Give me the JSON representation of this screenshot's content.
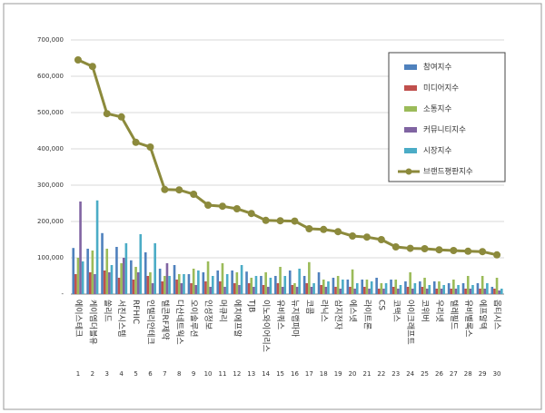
{
  "chart_data": {
    "type": "bar",
    "categories": [
      "에이스테크",
      "케이엠더블유",
      "쏠리드",
      "서진시스템",
      "RFHIC",
      "인텔리안테크",
      "텔콘RF제약",
      "다산네트웍스",
      "오이솔루션",
      "인성정보",
      "머큐리",
      "에치에프알",
      "TJB",
      "이노와이어리스",
      "유비쿼스",
      "뉴지랩파마",
      "코콤",
      "라닉스",
      "삼지전자",
      "에스넷",
      "라이트론",
      "CS",
      "코맥스",
      "아이크래프트",
      "코위버",
      "우리넷",
      "텔레필드",
      "유비벨록스",
      "에프알텍",
      "옵티시스"
    ],
    "category_numbers": [
      1,
      2,
      3,
      4,
      5,
      6,
      7,
      8,
      9,
      10,
      11,
      12,
      13,
      14,
      15,
      16,
      17,
      18,
      19,
      20,
      21,
      22,
      23,
      24,
      25,
      26,
      27,
      28,
      29,
      30
    ],
    "series": [
      {
        "name": "참여지수",
        "color": "#4f81bd",
        "values": [
          127000,
          125000,
          168000,
          130000,
          93000,
          115000,
          70000,
          80000,
          55000,
          60000,
          65000,
          65000,
          62000,
          50000,
          50000,
          65000,
          50000,
          60000,
          45000,
          40000,
          40000,
          45000,
          40000,
          35000,
          35000,
          35000,
          30000,
          30000,
          30000,
          20000
        ]
      },
      {
        "name": "미디어지수",
        "color": "#c0504d",
        "values": [
          55000,
          60000,
          65000,
          45000,
          40000,
          50000,
          35000,
          40000,
          30000,
          35000,
          35000,
          30000,
          30000,
          25000,
          30000,
          25000,
          30000,
          25000,
          20000,
          20000,
          20000,
          15000,
          20000,
          20000,
          20000,
          15000,
          15000,
          15000,
          15000,
          15000
        ]
      },
      {
        "name": "소통지수",
        "color": "#9bbb59",
        "values": [
          100000,
          120000,
          125000,
          85000,
          75000,
          60000,
          50000,
          55000,
          70000,
          90000,
          85000,
          60000,
          45000,
          60000,
          75000,
          30000,
          88000,
          40000,
          50000,
          68000,
          40000,
          30000,
          40000,
          60000,
          45000,
          35000,
          40000,
          50000,
          50000,
          45000
        ]
      },
      {
        "name": "커뮤니티지수",
        "color": "#8064a2",
        "values": [
          255000,
          55000,
          60000,
          100000,
          60000,
          30000,
          85000,
          30000,
          25000,
          20000,
          20000,
          25000,
          20000,
          20000,
          20000,
          20000,
          20000,
          20000,
          15000,
          15000,
          15000,
          15000,
          15000,
          15000,
          15000,
          15000,
          15000,
          15000,
          15000,
          10000
        ]
      },
      {
        "name": "시장지수",
        "color": "#4bacc6",
        "values": [
          90000,
          258000,
          80000,
          140000,
          165000,
          140000,
          50000,
          55000,
          65000,
          50000,
          55000,
          80000,
          50000,
          45000,
          50000,
          70000,
          30000,
          35000,
          40000,
          30000,
          35000,
          30000,
          25000,
          30000,
          25000,
          25000,
          25000,
          25000,
          30000,
          15000
        ]
      },
      {
        "name": "브랜드평판지수",
        "color": "#8c8a3c",
        "type": "line",
        "values": [
          645000,
          627000,
          497000,
          488000,
          418000,
          405000,
          288000,
          287000,
          275000,
          245000,
          242000,
          235000,
          222000,
          203000,
          202000,
          201000,
          180000,
          178000,
          172000,
          160000,
          157000,
          150000,
          130000,
          126000,
          125000,
          122000,
          120000,
          118000,
          117000,
          108000
        ]
      }
    ],
    "ylim": [
      0,
      700000
    ],
    "yticks": [
      {
        "value": 0,
        "label": "-"
      },
      {
        "value": 100000,
        "label": "100,000"
      },
      {
        "value": 200000,
        "label": "200,000"
      },
      {
        "value": 300000,
        "label": "300,000"
      },
      {
        "value": 400000,
        "label": "400,000"
      },
      {
        "value": 500000,
        "label": "500,000"
      },
      {
        "value": 600000,
        "label": "600,000"
      },
      {
        "value": 700000,
        "label": "700,000"
      }
    ],
    "grid": true
  }
}
